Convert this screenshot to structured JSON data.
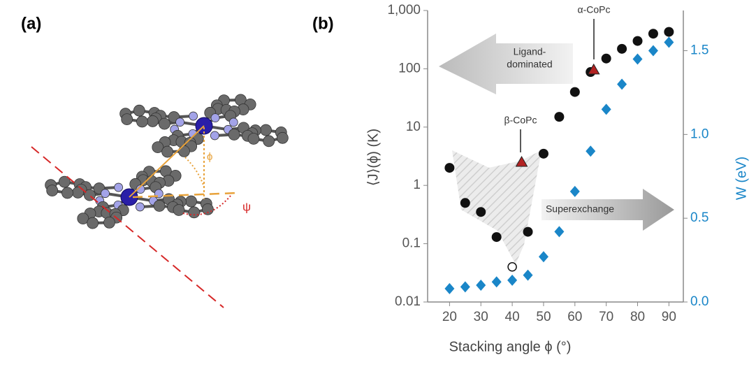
{
  "panel_labels": [
    "(a)",
    "(b)"
  ],
  "molecule": {
    "angle_labels": [
      "ϕ",
      "ψ"
    ]
  },
  "chart_data": {
    "type": "scatter",
    "x_label": "Stacking angle ϕ (°)",
    "y_label": "⟨J⟩(ϕ) (K)",
    "y2_label": "W (eV)",
    "annotations": [
      "Ligand-",
      "dominated",
      "Superexchange",
      "β-CoPc",
      "α-CoPc"
    ],
    "xlim": [
      13,
      94.6
    ],
    "xticks": [
      20,
      30,
      40,
      50,
      60,
      70,
      80,
      90
    ],
    "ylim": [
      0.01,
      1000
    ],
    "ylog": true,
    "yticks": [
      {
        "value": 0.01,
        "label": "0.01"
      },
      0.1,
      1,
      10,
      100,
      {
        "value": 1000,
        "label": "1,000"
      }
    ],
    "y2lim": [
      0,
      1.74
    ],
    "y2ticks": [
      {
        "value": 0,
        "label": "0.0"
      },
      0.5,
      {
        "value": 1,
        "label": "1.0"
      },
      1.5
    ],
    "series": [
      {
        "marker": "circle",
        "color": "#111111",
        "x": [
          20,
          25,
          30,
          35,
          45,
          50,
          55,
          60,
          65,
          70,
          75,
          80,
          85,
          90
        ],
        "values": [
          2,
          0.5,
          0.35,
          0.13,
          0.16,
          3.5,
          15,
          40,
          88,
          150,
          220,
          300,
          400,
          430
        ]
      },
      {
        "marker": "open-circle",
        "color": "#111111",
        "x": [
          40
        ],
        "values": [
          0.04
        ]
      },
      {
        "marker": "triangle",
        "color": "#b22222",
        "x": [
          43,
          66
        ],
        "values": [
          2.5,
          96
        ]
      },
      {
        "marker": "diamond",
        "color": "#1a86c8",
        "axis": "y2",
        "x": [
          20,
          25,
          30,
          35,
          40,
          45,
          50,
          55,
          60,
          65,
          70,
          75,
          80,
          85,
          90
        ],
        "values": [
          0.08,
          0.09,
          0.1,
          0.12,
          0.13,
          0.16,
          0.27,
          0.42,
          0.66,
          0.9,
          1.15,
          1.3,
          1.45,
          1.5,
          1.55
        ]
      }
    ]
  }
}
